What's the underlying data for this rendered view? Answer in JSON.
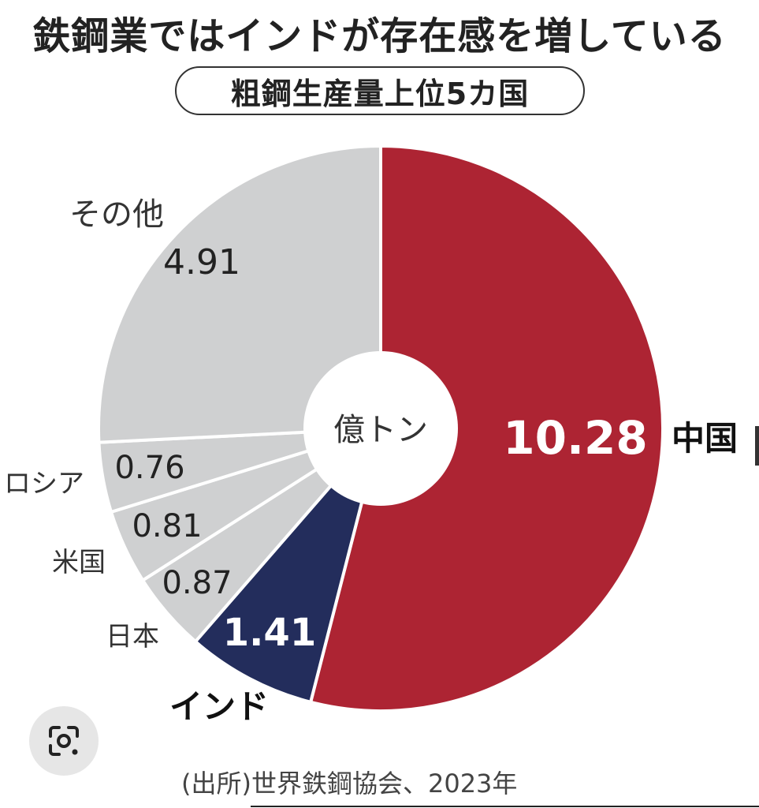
{
  "title": "鉄鋼業ではインドが存在感を増している",
  "subtitle": "粗鋼生産量上位5カ国",
  "source": "(出所)世界鉄鋼協会、2023年",
  "chart_data": {
    "type": "pie",
    "unit_label": "億トン",
    "slices": [
      {
        "name": "中国",
        "value": 10.28,
        "value_label": "10.28",
        "color": "#ad2433"
      },
      {
        "name": "インド",
        "value": 1.41,
        "value_label": "1.41",
        "color": "#232d5c"
      },
      {
        "name": "日本",
        "value": 0.87,
        "value_label": "0.87",
        "color": "#cfd0d1"
      },
      {
        "name": "米国",
        "value": 0.81,
        "value_label": "0.81",
        "color": "#cfd0d1"
      },
      {
        "name": "ロシア",
        "value": 0.76,
        "value_label": "0.76",
        "color": "#cfd0d1"
      },
      {
        "name": "その他",
        "value": 4.91,
        "value_label": "4.91",
        "color": "#cfd0d1"
      }
    ]
  }
}
